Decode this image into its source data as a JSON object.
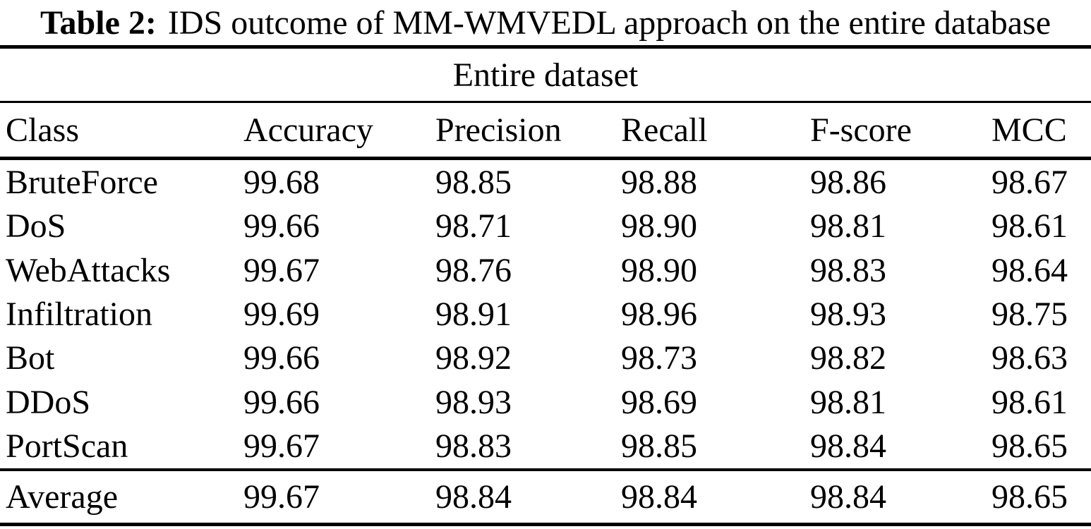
{
  "page": {
    "background_color": "#ffffff",
    "text_color": "#000000",
    "rule_color": "#000000"
  },
  "caption": {
    "label": "Table 2:",
    "text": "IDS outcome of MM-WMVEDL approach on the entire database"
  },
  "table": {
    "group_header": "Entire dataset",
    "columns": [
      "Class",
      "Accuracy",
      "Precision",
      "Recall",
      "F-score",
      "MCC"
    ],
    "rows": [
      {
        "cells": [
          "BruteForce",
          "99.68",
          "98.85",
          "98.88",
          "98.86",
          "98.67"
        ]
      },
      {
        "cells": [
          "DoS",
          "99.66",
          "98.71",
          "98.90",
          "98.81",
          "98.61"
        ]
      },
      {
        "cells": [
          "WebAttacks",
          "99.67",
          "98.76",
          "98.90",
          "98.83",
          "98.64"
        ]
      },
      {
        "cells": [
          "Infiltration",
          "99.69",
          "98.91",
          "98.96",
          "98.93",
          "98.75"
        ]
      },
      {
        "cells": [
          "Bot",
          "99.66",
          "98.92",
          "98.73",
          "98.82",
          "98.63"
        ]
      },
      {
        "cells": [
          "DDoS",
          "99.66",
          "98.93",
          "98.69",
          "98.81",
          "98.61"
        ]
      },
      {
        "cells": [
          "PortScan",
          "99.67",
          "98.83",
          "98.85",
          "98.84",
          "98.65"
        ]
      }
    ],
    "footer": {
      "cells": [
        "Average",
        "99.67",
        "98.84",
        "98.84",
        "98.84",
        "98.65"
      ]
    }
  }
}
